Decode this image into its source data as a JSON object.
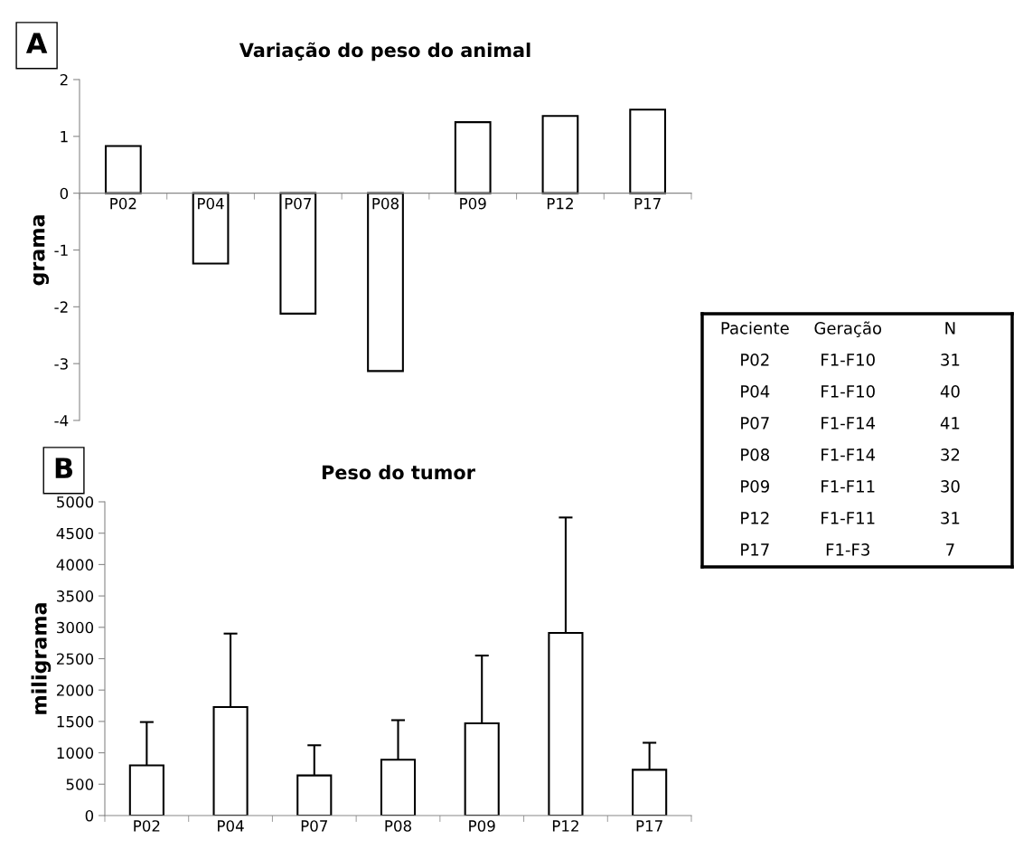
{
  "chart_data": [
    {
      "type": "bar",
      "title": "Variação do peso do animal",
      "ylabel": "grama",
      "annotations": [
        "A"
      ],
      "categories": [
        "P02",
        "P04",
        "P07",
        "P08",
        "P09",
        "P12",
        "P17"
      ],
      "series": [
        {
          "color": "#ffffff",
          "values": [
            0.83,
            -1.24,
            -2.12,
            -3.13,
            1.25,
            1.36,
            1.47
          ]
        }
      ],
      "ylim": [
        -4,
        2
      ],
      "yticks": [
        -4,
        -3,
        -2,
        -1,
        0,
        1,
        2
      ],
      "grid": false
    },
    {
      "type": "bar",
      "title": "Peso do tumor",
      "ylabel": "miligrama",
      "annotations": [
        "B"
      ],
      "categories": [
        "P02",
        "P04",
        "P07",
        "P08",
        "P09",
        "P12",
        "P17"
      ],
      "series": [
        {
          "color": "#ffffff",
          "values": [
            800,
            1730,
            640,
            890,
            1470,
            2910,
            730
          ],
          "errors": [
            [
              800,
              1490
            ],
            [
              1730,
              2900
            ],
            [
              640,
              1120
            ],
            [
              890,
              1520
            ],
            [
              1470,
              2550
            ],
            [
              2910,
              4750
            ],
            [
              730,
              1160
            ]
          ]
        }
      ],
      "ylim": [
        0,
        5000
      ],
      "yticks": [
        0,
        500,
        1000,
        1500,
        2000,
        2500,
        3000,
        3500,
        4000,
        4500,
        5000
      ],
      "grid": false
    },
    {
      "type": "other",
      "annotations": [
        "Paciente",
        "Geração",
        "N",
        "P02",
        "F1-F10",
        "31",
        "P04",
        "F1-F10",
        "40",
        "P07",
        "F1-F14",
        "41",
        "P08",
        "F1-F14",
        "32",
        "P09",
        "F1-F11",
        "30",
        "P12",
        "F1-F11",
        "31",
        "P17",
        "F1-F3",
        "7"
      ]
    }
  ]
}
